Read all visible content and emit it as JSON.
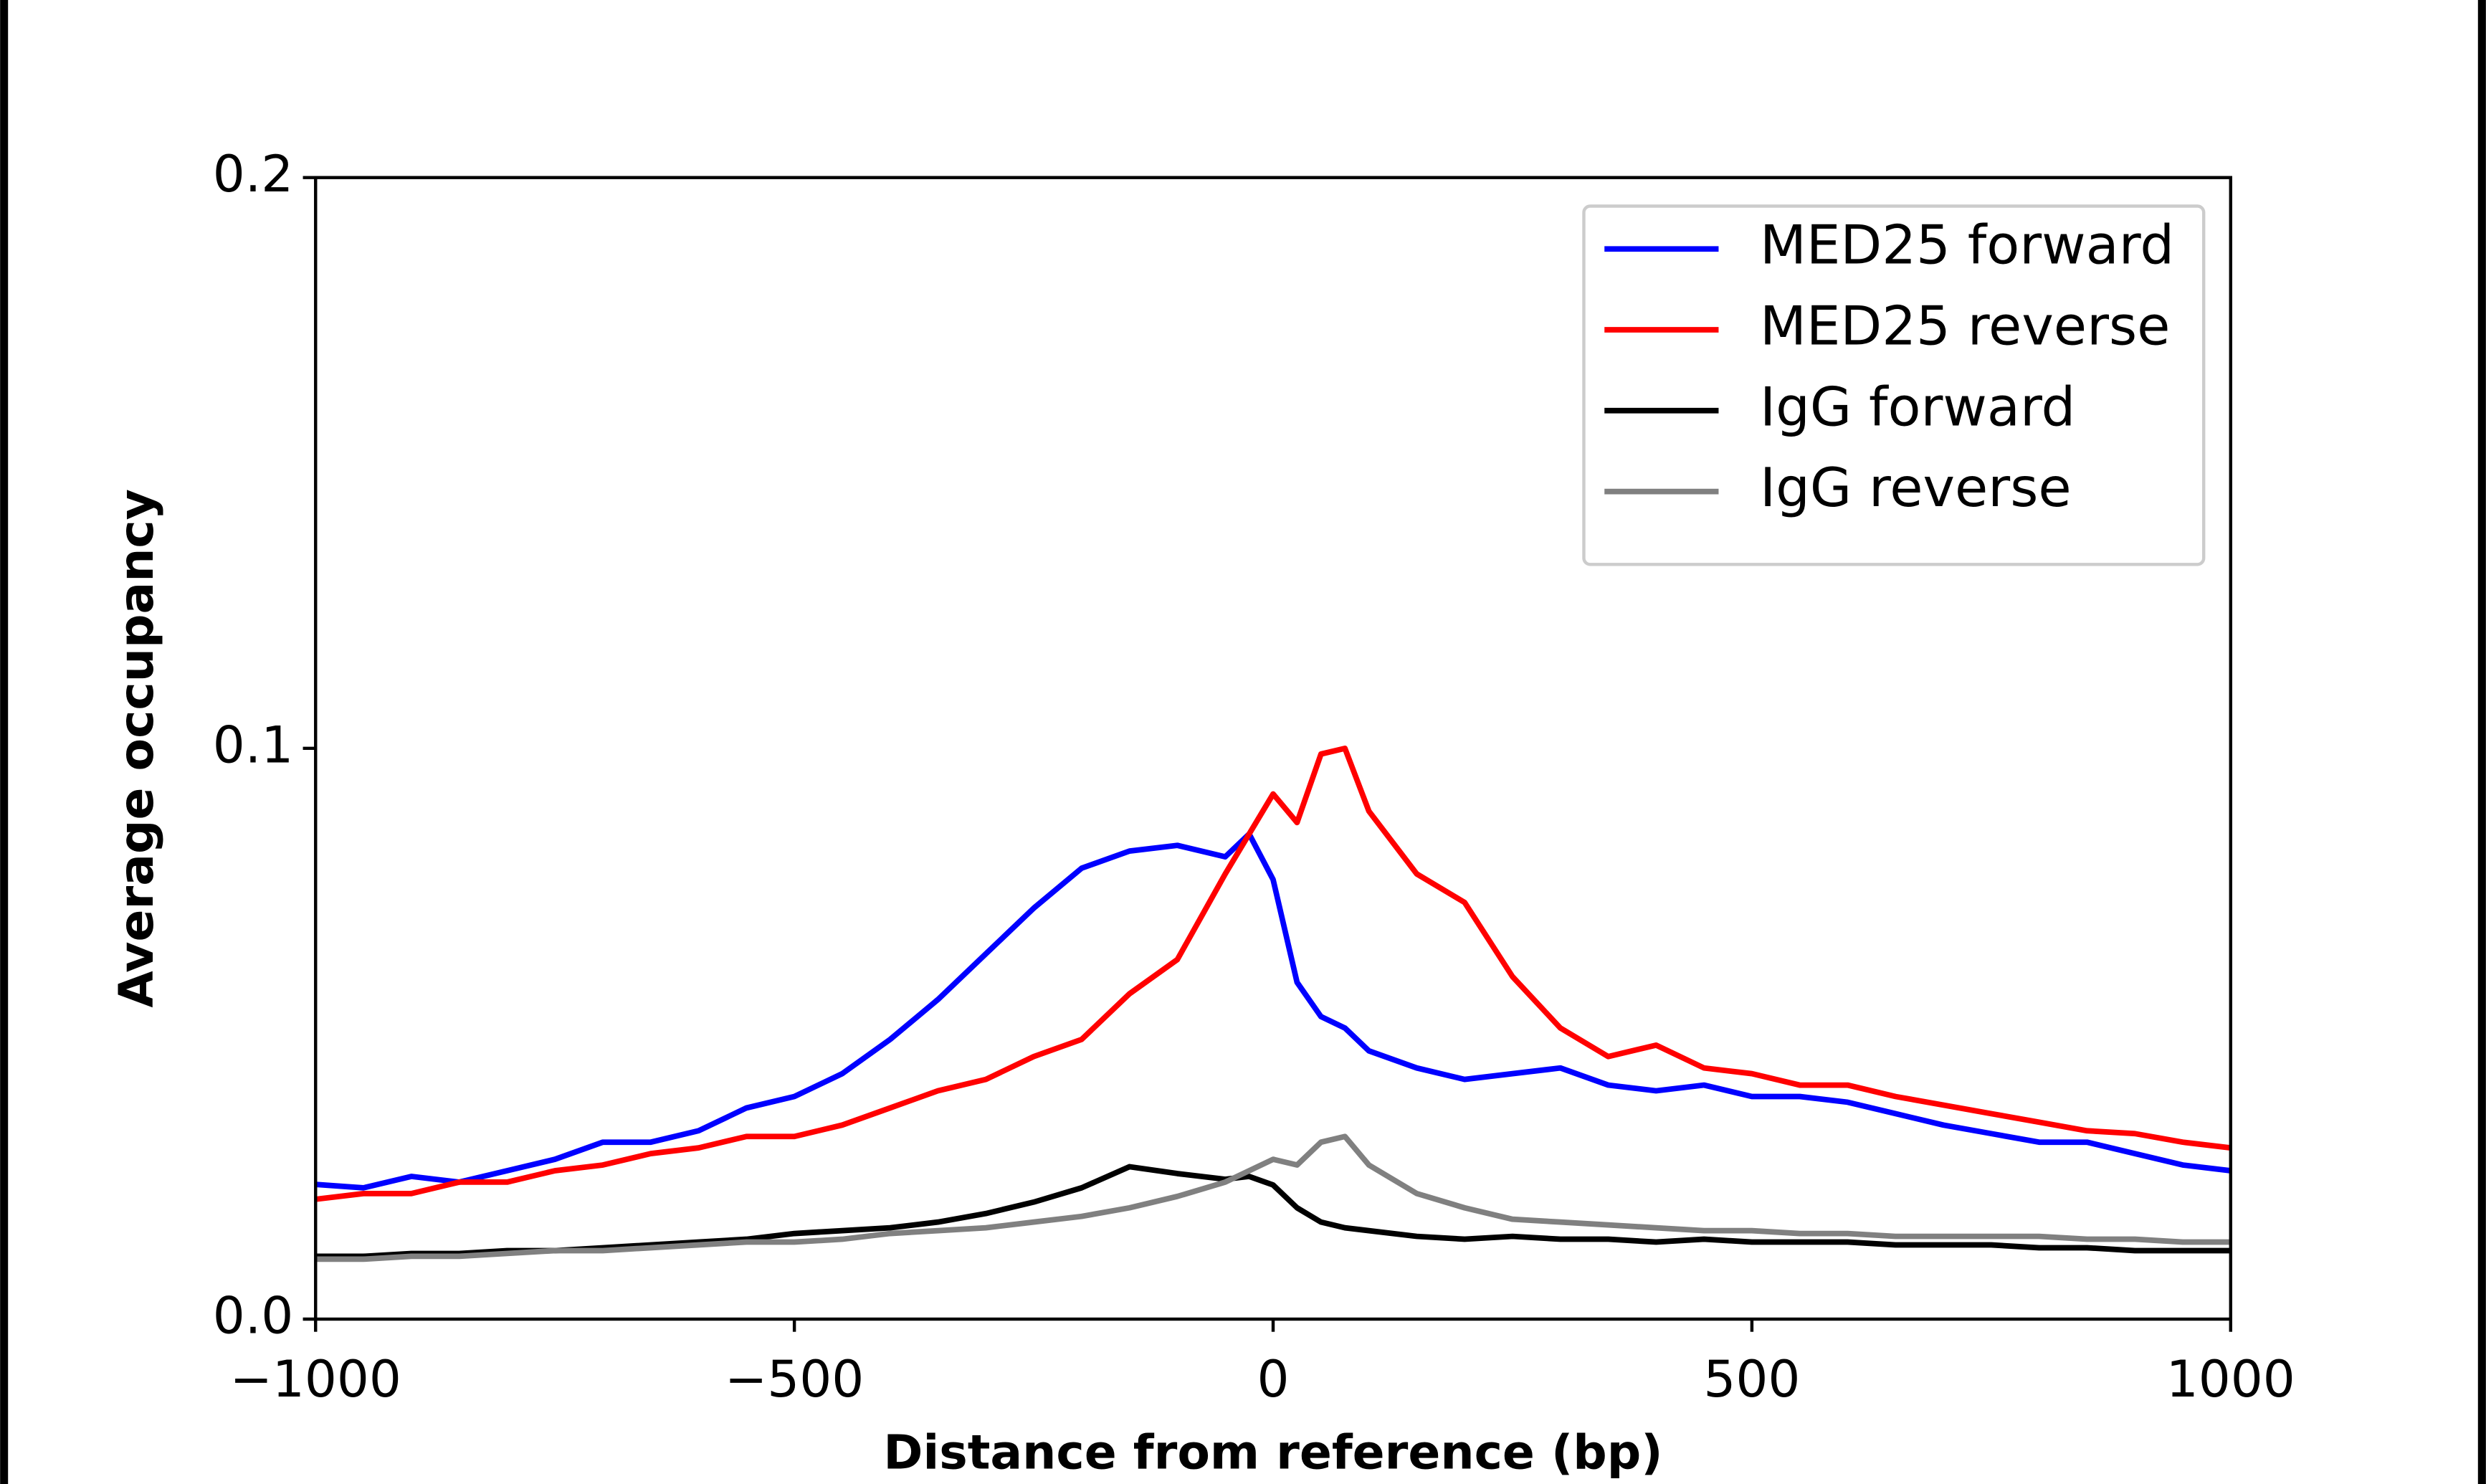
{
  "chart_data": {
    "type": "line",
    "xlabel": "Distance from reference (bp)",
    "ylabel": "Average occupancy",
    "x": [
      -1000,
      -950,
      -900,
      -850,
      -800,
      -750,
      -700,
      -650,
      -600,
      -550,
      -500,
      -450,
      -400,
      -350,
      -300,
      -250,
      -200,
      -150,
      -100,
      -50,
      -25,
      0,
      25,
      50,
      75,
      100,
      150,
      200,
      250,
      300,
      350,
      400,
      450,
      500,
      550,
      600,
      650,
      700,
      750,
      800,
      850,
      900,
      950,
      1000
    ],
    "series": [
      {
        "name": "MED25 forward",
        "color": "#0000ff",
        "values": [
          0.0236,
          0.023,
          0.025,
          0.024,
          0.026,
          0.028,
          0.031,
          0.031,
          0.033,
          0.037,
          0.039,
          0.043,
          0.049,
          0.056,
          0.064,
          0.072,
          0.079,
          0.082,
          0.083,
          0.081,
          0.085,
          0.077,
          0.059,
          0.053,
          0.051,
          0.047,
          0.044,
          0.042,
          0.043,
          0.044,
          0.041,
          0.04,
          0.041,
          0.039,
          0.039,
          0.038,
          0.036,
          0.034,
          0.0325,
          0.031,
          0.031,
          0.029,
          0.027,
          0.026
        ]
      },
      {
        "name": "MED25 reverse",
        "color": "#ff0000",
        "values": [
          0.021,
          0.022,
          0.022,
          0.024,
          0.024,
          0.026,
          0.027,
          0.029,
          0.03,
          0.032,
          0.032,
          0.034,
          0.037,
          0.04,
          0.042,
          0.046,
          0.049,
          0.057,
          0.063,
          0.078,
          0.085,
          0.092,
          0.087,
          0.099,
          0.1,
          0.089,
          0.078,
          0.073,
          0.06,
          0.051,
          0.046,
          0.048,
          0.044,
          0.043,
          0.041,
          0.041,
          0.039,
          0.0375,
          0.036,
          0.0345,
          0.033,
          0.0325,
          0.031,
          0.03
        ]
      },
      {
        "name": "IgG forward",
        "color": "#000000",
        "values": [
          0.011,
          0.011,
          0.0115,
          0.0115,
          0.012,
          0.012,
          0.0125,
          0.013,
          0.0135,
          0.014,
          0.015,
          0.0155,
          0.016,
          0.017,
          0.0185,
          0.0205,
          0.023,
          0.0267,
          0.0255,
          0.0245,
          0.025,
          0.0235,
          0.0195,
          0.017,
          0.016,
          0.0155,
          0.0145,
          0.014,
          0.0145,
          0.014,
          0.014,
          0.0135,
          0.014,
          0.0135,
          0.0135,
          0.0135,
          0.013,
          0.013,
          0.013,
          0.0125,
          0.0125,
          0.012,
          0.012,
          0.012
        ]
      },
      {
        "name": "IgG reverse",
        "color": "#808080",
        "values": [
          0.0105,
          0.0105,
          0.011,
          0.011,
          0.0115,
          0.012,
          0.012,
          0.0125,
          0.013,
          0.0135,
          0.0135,
          0.014,
          0.015,
          0.0155,
          0.016,
          0.017,
          0.018,
          0.0195,
          0.0215,
          0.024,
          0.026,
          0.028,
          0.027,
          0.031,
          0.032,
          0.027,
          0.022,
          0.0195,
          0.0175,
          0.017,
          0.0165,
          0.016,
          0.0155,
          0.0155,
          0.015,
          0.015,
          0.0145,
          0.0145,
          0.0145,
          0.0145,
          0.014,
          0.014,
          0.0135,
          0.0135
        ]
      }
    ],
    "xlim": [
      -1000,
      1000
    ],
    "xticks": [
      {
        "value": -1000,
        "label": "−1000"
      },
      {
        "value": -500,
        "label": "−500"
      },
      0,
      500,
      1000
    ],
    "ylim": [
      0,
      0.2
    ],
    "yticks": [
      {
        "value": 0,
        "label": "0.0"
      },
      0.1,
      0.2
    ],
    "legend": "upper right",
    "grid": false
  }
}
